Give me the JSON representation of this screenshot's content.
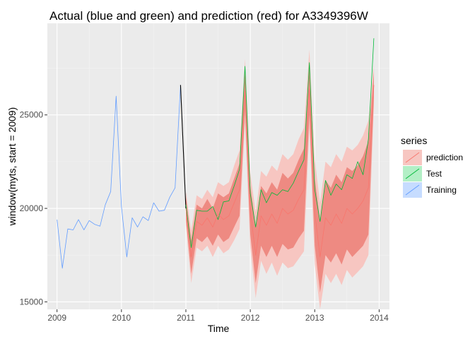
{
  "chart_data": {
    "type": "line",
    "title": "Actual (blue and green) and prediction (red) for A3349396W",
    "xlabel": "Time",
    "ylabel": "window(myts, start = 2009)",
    "xlim": [
      2008.85,
      2014.16
    ],
    "ylim": [
      14600,
      29900
    ],
    "x_ticks": [
      2009,
      2010,
      2011,
      2012,
      2013,
      2014
    ],
    "y_ticks": [
      15000,
      20000,
      25000
    ],
    "grid": true,
    "legend": {
      "title": "series",
      "position": "right",
      "entries": [
        "prediction",
        "Test",
        "Training"
      ]
    },
    "colors": {
      "panel": "#ebebeb",
      "grid_major": "#ffffff",
      "grid_minor": "#f4f4f4",
      "prediction": "#F8766D",
      "test": "#00BA38",
      "training": "#619CFF",
      "band80": "#ee8a82",
      "band95": "#f7c6c1",
      "connector": "#000000"
    },
    "series": [
      {
        "name": "Training",
        "x": [
          2009.0,
          2009.083,
          2009.167,
          2009.25,
          2009.333,
          2009.417,
          2009.5,
          2009.583,
          2009.667,
          2009.75,
          2009.833,
          2009.917,
          2010.0,
          2010.083,
          2010.167,
          2010.25,
          2010.333,
          2010.417,
          2010.5,
          2010.583,
          2010.667,
          2010.75,
          2010.833,
          2010.917
        ],
        "values": [
          19400,
          16800,
          18900,
          18850,
          19400,
          18850,
          19350,
          19150,
          19050,
          20200,
          20900,
          26000,
          20100,
          17400,
          19500,
          19000,
          19550,
          19350,
          20300,
          19850,
          19900,
          20600,
          21100,
          26600
        ]
      },
      {
        "name": "Test",
        "x": [
          2011.0,
          2011.083,
          2011.167,
          2011.25,
          2011.333,
          2011.417,
          2011.5,
          2011.583,
          2011.667,
          2011.75,
          2011.833,
          2011.917,
          2012.0,
          2012.083,
          2012.167,
          2012.25,
          2012.333,
          2012.417,
          2012.5,
          2012.583,
          2012.667,
          2012.75,
          2012.833,
          2012.917,
          2013.0,
          2013.083,
          2013.167,
          2013.25,
          2013.333,
          2013.417,
          2013.5,
          2013.583,
          2013.667,
          2013.75,
          2013.833,
          2013.917
        ],
        "values": [
          20200,
          17900,
          19900,
          19850,
          19850,
          20100,
          19400,
          20350,
          20400,
          21200,
          22100,
          27600,
          20800,
          19000,
          21000,
          20300,
          20850,
          20700,
          21000,
          20900,
          21350,
          22000,
          22600,
          27800,
          21000,
          19300,
          21500,
          20700,
          21300,
          21000,
          21800,
          21600,
          22500,
          21800,
          23700,
          29100
        ]
      },
      {
        "name": "prediction",
        "x": [
          2011.0,
          2011.083,
          2011.167,
          2011.25,
          2011.333,
          2011.417,
          2011.5,
          2011.583,
          2011.667,
          2011.75,
          2011.833,
          2011.917,
          2012.0,
          2012.083,
          2012.167,
          2012.25,
          2012.333,
          2012.417,
          2012.5,
          2012.583,
          2012.667,
          2012.75,
          2012.833,
          2012.917,
          2013.0,
          2013.083,
          2013.167,
          2013.25,
          2013.333,
          2013.417,
          2013.5,
          2013.583,
          2013.667,
          2013.75,
          2013.833,
          2013.917
        ],
        "values": [
          20000,
          17400,
          19300,
          19100,
          19500,
          19000,
          19700,
          19400,
          19600,
          20300,
          21000,
          26300,
          19900,
          17500,
          19600,
          19100,
          19700,
          19200,
          20000,
          19700,
          19900,
          20500,
          21000,
          26400,
          19800,
          17400,
          19500,
          19100,
          19700,
          19200,
          20000,
          19700,
          20000,
          20400,
          21100,
          26600
        ],
        "hi80": [
          20600,
          18300,
          20200,
          20000,
          20500,
          20000,
          20800,
          20600,
          20800,
          21600,
          22400,
          27400,
          21200,
          19000,
          21200,
          20800,
          21400,
          21000,
          21900,
          21600,
          21900,
          22600,
          23200,
          27800,
          21600,
          19300,
          21500,
          21100,
          21800,
          21400,
          22200,
          22000,
          22300,
          22800,
          23600,
          27300
        ],
        "lo80": [
          19400,
          16500,
          18400,
          18200,
          18500,
          18000,
          18600,
          18200,
          18400,
          19000,
          19600,
          25200,
          18600,
          16000,
          18000,
          17400,
          18000,
          17400,
          18100,
          17800,
          17900,
          18400,
          18800,
          25000,
          18000,
          15500,
          17500,
          17100,
          17600,
          17000,
          17800,
          17400,
          17700,
          18000,
          18600,
          25900
        ],
        "hi95": [
          20900,
          18800,
          20700,
          20500,
          21000,
          20600,
          21400,
          21200,
          21400,
          22300,
          23100,
          28000,
          21900,
          19800,
          22000,
          21700,
          22300,
          22000,
          22900,
          22600,
          22900,
          23700,
          24300,
          28500,
          22600,
          20300,
          22500,
          22200,
          22900,
          22500,
          23300,
          23100,
          23400,
          23900,
          24700,
          27700
        ],
        "lo95": [
          19100,
          16000,
          17900,
          17700,
          18000,
          17400,
          18000,
          17600,
          17800,
          18300,
          18900,
          24600,
          17900,
          15200,
          17200,
          16500,
          17100,
          16400,
          17100,
          16800,
          16900,
          17300,
          17700,
          24300,
          17000,
          14600,
          16500,
          16000,
          16500,
          15900,
          16700,
          16300,
          16600,
          16900,
          17500,
          25500
        ]
      }
    ]
  }
}
